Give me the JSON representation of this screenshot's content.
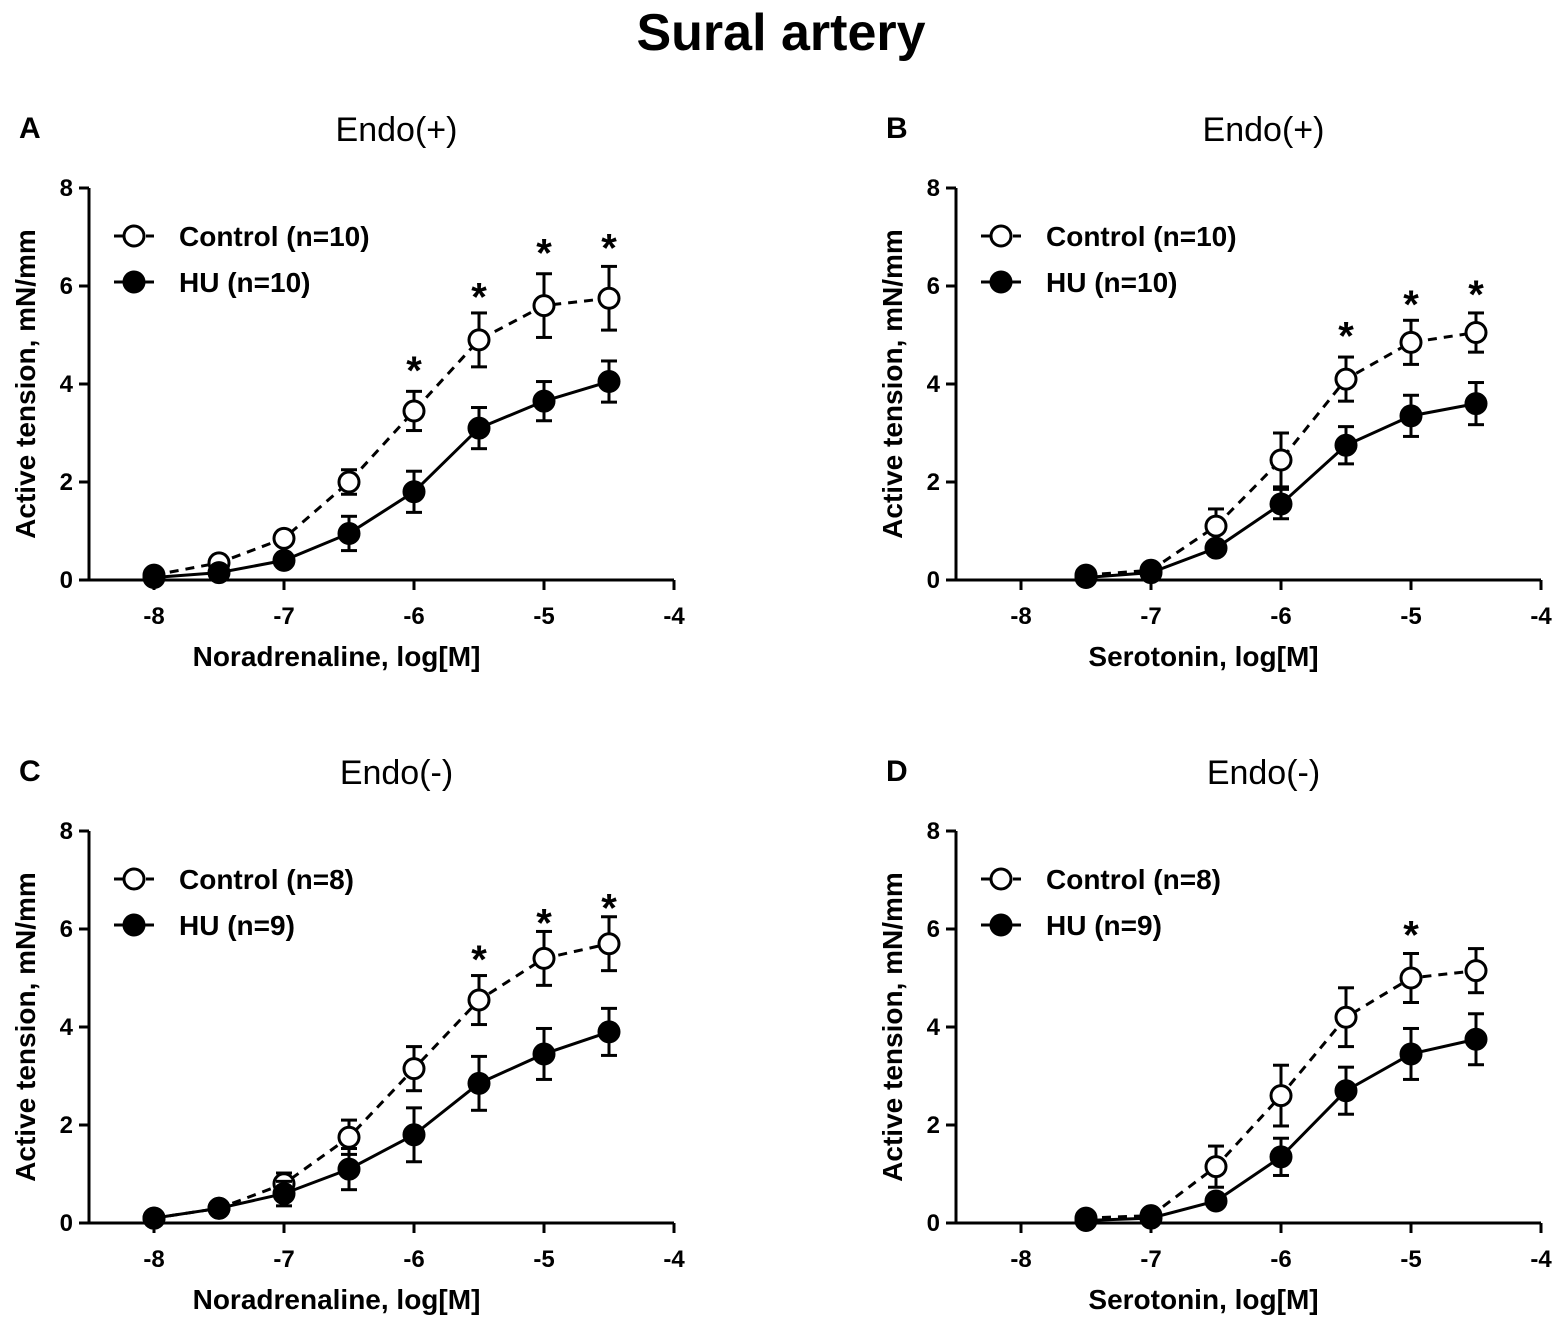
{
  "title": "Sural artery",
  "chart_data": [
    {
      "type": "line",
      "panel": "A",
      "title": "Endo(+)",
      "xlabel": "Noradrenaline, log[M]",
      "ylabel": "Active tension, mN/mm",
      "xlim": [
        -8.5,
        -4
      ],
      "ylim": [
        0,
        8
      ],
      "xticks": [
        -8,
        -7,
        -6,
        -5,
        -4
      ],
      "xtick_labels": [
        "-8",
        "-7",
        "-6",
        "-5",
        "-4"
      ],
      "yticks": [
        0,
        2,
        4,
        6,
        8
      ],
      "ytick_labels": [
        "0",
        "2",
        "4",
        "6",
        "8"
      ],
      "legend_position": "top-left",
      "series": [
        {
          "name": "Control (n=10)",
          "style": "dashed-open-circle",
          "x": [
            -8,
            -7.5,
            -7,
            -6.5,
            -6,
            -5.5,
            -5,
            -4.5
          ],
          "y": [
            0.1,
            0.35,
            0.85,
            2.0,
            3.45,
            4.9,
            5.6,
            5.75
          ],
          "err": [
            0,
            0,
            0.1,
            0.25,
            0.4,
            0.55,
            0.65,
            0.65
          ]
        },
        {
          "name": "HU (n=10)",
          "style": "solid-filled-circle",
          "x": [
            -8,
            -7.5,
            -7,
            -6.5,
            -6,
            -5.5,
            -5,
            -4.5
          ],
          "y": [
            0.05,
            0.15,
            0.4,
            0.95,
            1.8,
            3.1,
            3.65,
            4.05
          ],
          "err": [
            0,
            0,
            0.1,
            0.35,
            0.42,
            0.42,
            0.4,
            0.42
          ]
        }
      ],
      "significance": [
        {
          "label": "*",
          "x": -6,
          "y": 4.45
        },
        {
          "label": "*",
          "x": -5.5,
          "y": 5.95
        },
        {
          "label": "*",
          "x": -5,
          "y": 6.85
        },
        {
          "label": "*",
          "x": -4.5,
          "y": 6.95
        }
      ]
    },
    {
      "type": "line",
      "panel": "B",
      "title": "Endo(+)",
      "xlabel": "Serotonin, log[M]",
      "ylabel": "Active tension, mN/mm",
      "xlim": [
        -8.5,
        -4
      ],
      "ylim": [
        0,
        8
      ],
      "xticks": [
        -8,
        -7,
        -6,
        -5,
        -4
      ],
      "xtick_labels": [
        "-8",
        "-7",
        "-6",
        "-5",
        "-4"
      ],
      "yticks": [
        0,
        2,
        4,
        6,
        8
      ],
      "ytick_labels": [
        "0",
        "2",
        "4",
        "6",
        "8"
      ],
      "legend_position": "top-left",
      "series": [
        {
          "name": "Control (n=10)",
          "style": "dashed-open-circle",
          "x": [
            -7.5,
            -7,
            -6.5,
            -6,
            -5.5,
            -5,
            -4.5
          ],
          "y": [
            0.1,
            0.2,
            1.1,
            2.45,
            4.1,
            4.85,
            5.05
          ],
          "err": [
            0,
            0,
            0.35,
            0.55,
            0.45,
            0.45,
            0.4
          ]
        },
        {
          "name": "HU (n=10)",
          "style": "solid-filled-circle",
          "x": [
            -7.5,
            -7,
            -6.5,
            -6,
            -5.5,
            -5,
            -4.5
          ],
          "y": [
            0.05,
            0.15,
            0.65,
            1.55,
            2.75,
            3.35,
            3.6
          ],
          "err": [
            0,
            0,
            0.1,
            0.3,
            0.38,
            0.42,
            0.43
          ]
        }
      ],
      "significance": [
        {
          "label": "*",
          "x": -5.5,
          "y": 5.15
        },
        {
          "label": "*",
          "x": -5,
          "y": 5.8
        },
        {
          "label": "*",
          "x": -4.5,
          "y": 6.0
        }
      ]
    },
    {
      "type": "line",
      "panel": "C",
      "title": "Endo(-)",
      "xlabel": "Noradrenaline, log[M]",
      "ylabel": "Active tension, mN/mm",
      "xlim": [
        -8.5,
        -4
      ],
      "ylim": [
        0,
        8
      ],
      "xticks": [
        -8,
        -7,
        -6,
        -5,
        -4
      ],
      "xtick_labels": [
        "-8",
        "-7",
        "-6",
        "-5",
        "-4"
      ],
      "yticks": [
        0,
        2,
        4,
        6,
        8
      ],
      "ytick_labels": [
        "0",
        "2",
        "4",
        "6",
        "8"
      ],
      "legend_position": "top-left",
      "series": [
        {
          "name": "Control (n=8)",
          "style": "dashed-open-circle",
          "x": [
            -8,
            -7.5,
            -7,
            -6.5,
            -6,
            -5.5,
            -5,
            -4.5
          ],
          "y": [
            0.1,
            0.3,
            0.8,
            1.75,
            3.15,
            4.55,
            5.4,
            5.7
          ],
          "err": [
            0,
            0,
            0.22,
            0.35,
            0.45,
            0.5,
            0.55,
            0.55
          ]
        },
        {
          "name": "HU (n=9)",
          "style": "solid-filled-circle",
          "x": [
            -8,
            -7.5,
            -7,
            -6.5,
            -6,
            -5.5,
            -5,
            -4.5
          ],
          "y": [
            0.1,
            0.3,
            0.6,
            1.1,
            1.8,
            2.85,
            3.45,
            3.9
          ],
          "err": [
            0,
            0,
            0.25,
            0.42,
            0.55,
            0.55,
            0.52,
            0.48
          ]
        }
      ],
      "significance": [
        {
          "label": "*",
          "x": -5.5,
          "y": 5.55
        },
        {
          "label": "*",
          "x": -5,
          "y": 6.3
        },
        {
          "label": "*",
          "x": -4.5,
          "y": 6.6
        }
      ]
    },
    {
      "type": "line",
      "panel": "D",
      "title": "Endo(-)",
      "xlabel": "Serotonin, log[M]",
      "ylabel": "Active tension, mN/mm",
      "xlim": [
        -8.5,
        -4
      ],
      "ylim": [
        0,
        8
      ],
      "xticks": [
        -8,
        -7,
        -6,
        -5,
        -4
      ],
      "xtick_labels": [
        "-8",
        "-7",
        "-6",
        "-5",
        "-4"
      ],
      "yticks": [
        0,
        2,
        4,
        6,
        8
      ],
      "ytick_labels": [
        "0",
        "2",
        "4",
        "6",
        "8"
      ],
      "legend_position": "top-left",
      "series": [
        {
          "name": "Control (n=8)",
          "style": "dashed-open-circle",
          "x": [
            -7.5,
            -7,
            -6.5,
            -6,
            -5.5,
            -5,
            -4.5
          ],
          "y": [
            0.1,
            0.15,
            1.15,
            2.6,
            4.2,
            5.0,
            5.15
          ],
          "err": [
            0,
            0,
            0.42,
            0.62,
            0.6,
            0.5,
            0.45
          ]
        },
        {
          "name": "HU (n=9)",
          "style": "solid-filled-circle",
          "x": [
            -7.5,
            -7,
            -6.5,
            -6,
            -5.5,
            -5,
            -4.5
          ],
          "y": [
            0.05,
            0.1,
            0.45,
            1.35,
            2.7,
            3.45,
            3.75
          ],
          "err": [
            0,
            0,
            0.1,
            0.38,
            0.48,
            0.52,
            0.52
          ]
        }
      ],
      "significance": [
        {
          "label": "*",
          "x": -5,
          "y": 6.05
        }
      ]
    }
  ]
}
